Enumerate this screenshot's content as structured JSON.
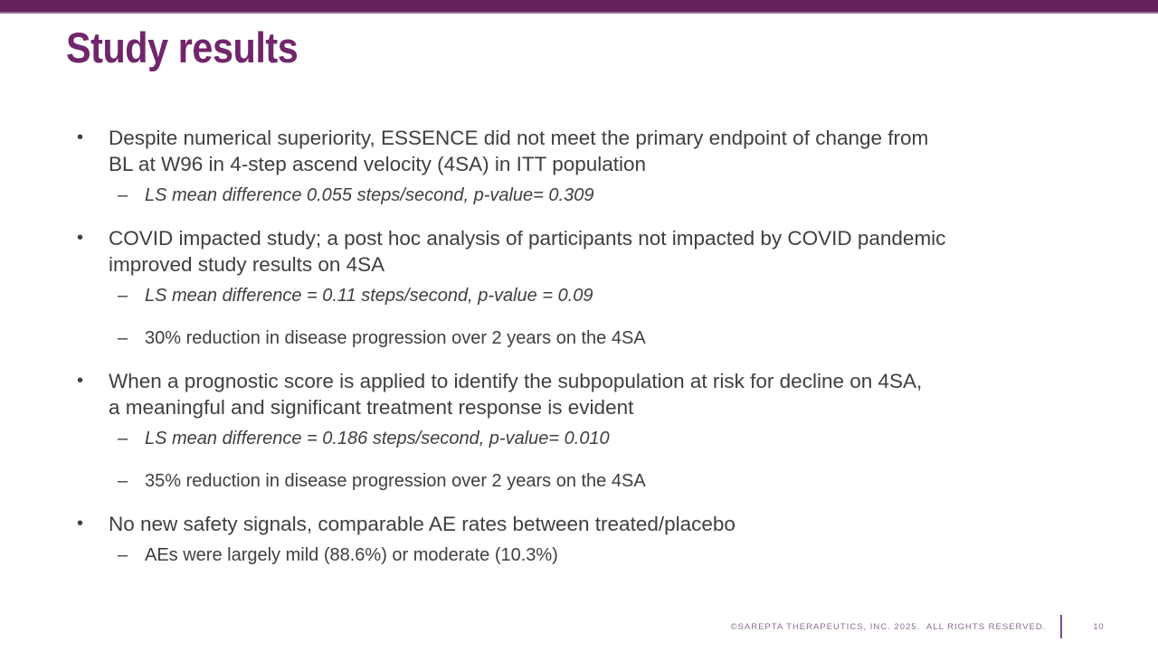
{
  "slide": {
    "title": "Study results",
    "markers": {
      "bullet": "•",
      "sub": "–"
    },
    "bullets": [
      {
        "lines": [
          "Despite numerical superiority, ESSENCE did not meet the primary endpoint of change from",
          "BL at W96 in 4-step ascend velocity (4SA) in ITT population"
        ],
        "subs": [
          "LS mean difference 0.055 steps/second, p-value= 0.309"
        ]
      },
      {
        "lines": [
          "COVID impacted study; a post hoc analysis of participants not impacted by COVID pandemic",
          "improved study results on 4SA"
        ],
        "subs": [
          "LS mean difference = 0.11 steps/second, p-value = 0.09",
          "30% reduction in disease progression over 2 years on the 4SA"
        ]
      },
      {
        "lines": [
          "When a prognostic score is applied to identify the subpopulation at risk for decline on 4SA,",
          "a meaningful and significant treatment response is evident"
        ],
        "subs": [
          "LS mean difference = 0.186 steps/second, p-value= 0.010",
          "35% reduction in disease progression over 2 years on the 4SA"
        ]
      },
      {
        "lines": [
          "No new safety signals, comparable AE rates between treated/placebo"
        ],
        "subs": [
          "AEs were largely mild (88.6%) or moderate (10.3%)"
        ]
      }
    ],
    "footer": {
      "copyright": "©SAREPTA THERAPEUTICS, INC. 2025.  ALL RIGHTS RESERVED.",
      "page_number": "10"
    },
    "colors": {
      "top_bar": "#67215f",
      "top_bar_edge": "#9b6f99",
      "title": "#71256b",
      "body_text": "#3f3f3f",
      "footer_text": "#8a6b93",
      "footer_divider": "#7a4f85"
    }
  }
}
